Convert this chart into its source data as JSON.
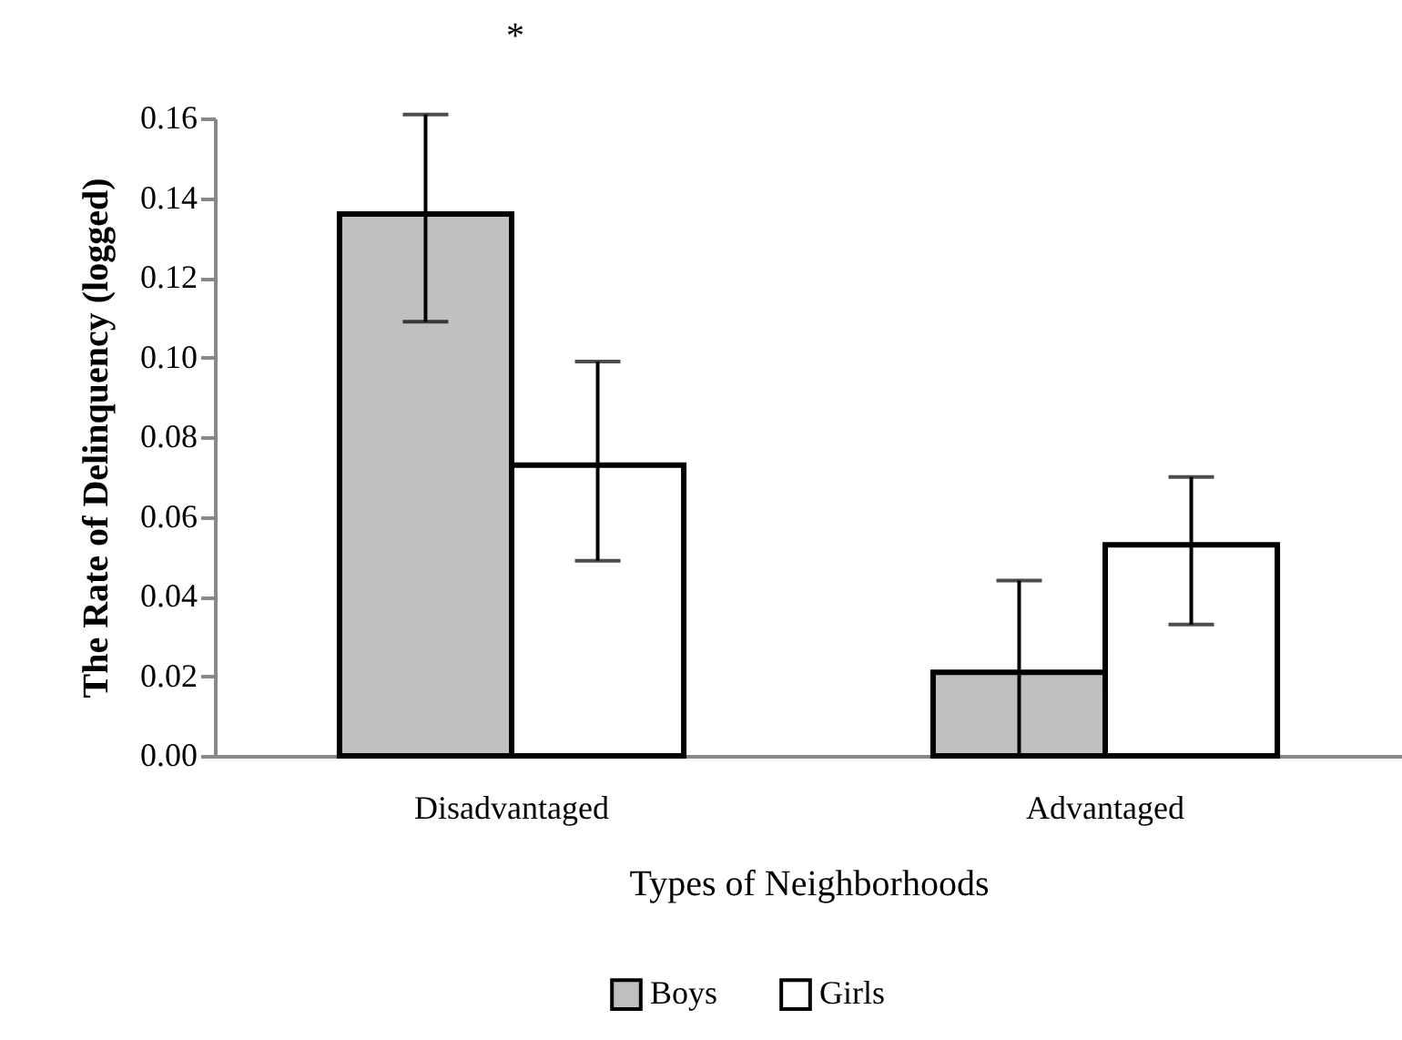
{
  "chart_data": {
    "type": "bar",
    "xlabel": "Types of Neighborhoods",
    "ylabel": "The Rate of Delinquency (logged)",
    "categories": [
      "Disadvantaged",
      "Advantaged"
    ],
    "series": [
      {
        "name": "Boys",
        "color": "#c0c0c0",
        "values": [
          0.136,
          0.021
        ],
        "errors": [
          [
            0.109,
            0.161
          ],
          [
            0,
            0.044
          ]
        ]
      },
      {
        "name": "Girls",
        "color": "#ffffff",
        "values": [
          0.073,
          0.053
        ],
        "errors": [
          [
            0.049,
            0.099
          ],
          [
            0.033,
            0.07
          ]
        ]
      }
    ],
    "ylim": [
      0,
      0.16
    ],
    "yticks": [
      {
        "value": 0,
        "label": "0.00"
      },
      {
        "value": 0.02,
        "label": "0.02"
      },
      {
        "value": 0.04,
        "label": "0.04"
      },
      {
        "value": 0.06,
        "label": "0.06"
      },
      {
        "value": 0.08,
        "label": "0.08"
      },
      {
        "value": 0.1,
        "label": "0.10"
      },
      {
        "value": 0.12,
        "label": "0.12"
      },
      {
        "value": 0.14,
        "label": "0.14"
      },
      {
        "value": 0.16,
        "label": "0.16"
      }
    ],
    "annotations": [
      "*"
    ],
    "grid": false,
    "legend": "bottom"
  }
}
